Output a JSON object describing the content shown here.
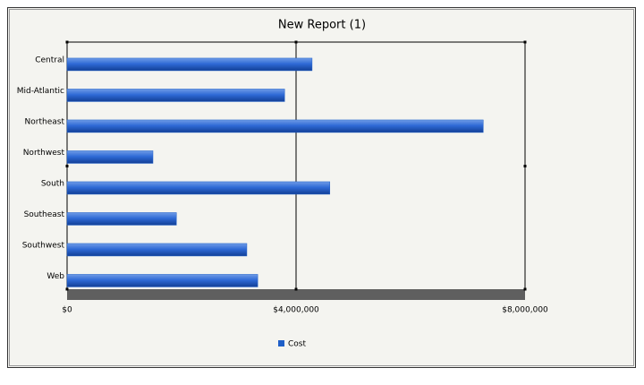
{
  "chart_data": {
    "type": "bar",
    "orientation": "horizontal",
    "title": "New Report (1)",
    "categories": [
      "Central",
      "Mid-Atlantic",
      "Northeast",
      "Northwest",
      "South",
      "Southeast",
      "Southwest",
      "Web"
    ],
    "series": [
      {
        "name": "Cost",
        "color": "#1f5fc8",
        "values": [
          4280000,
          3800000,
          7270000,
          1500000,
          4590000,
          1910000,
          3140000,
          3330000
        ]
      }
    ],
    "xlim": [
      0,
      8000000
    ],
    "xticks": [
      {
        "value": 0,
        "label": "$0"
      },
      {
        "value": 4000000,
        "label": "$4,000,000"
      },
      {
        "value": 8000000,
        "label": "$8,000,000"
      }
    ],
    "grid": true,
    "legend": "bottom"
  }
}
